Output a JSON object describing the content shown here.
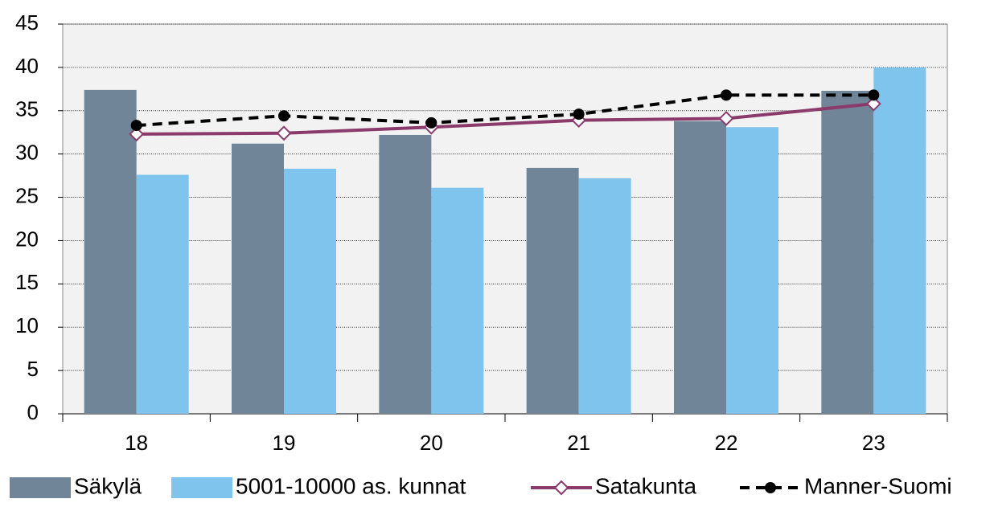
{
  "chart_data": {
    "type": "bar",
    "categories": [
      "18",
      "19",
      "20",
      "21",
      "22",
      "23"
    ],
    "series": [
      {
        "name": "Säkylä",
        "type": "bar",
        "color": "#718599",
        "values": [
          37.4,
          31.2,
          32.2,
          28.4,
          33.8,
          37.3
        ]
      },
      {
        "name": "5001-10000 as. kunnat",
        "type": "bar",
        "color": "#7fc4ec",
        "values": [
          27.6,
          28.3,
          26.1,
          27.2,
          33.1,
          40.0
        ]
      },
      {
        "name": "Satakunta",
        "type": "line",
        "color": "#8b3a6c",
        "marker": "diamond",
        "dashed": false,
        "values": [
          32.3,
          32.4,
          33.1,
          33.9,
          34.1,
          35.8
        ]
      },
      {
        "name": "Manner-Suomi",
        "type": "line",
        "color": "#000000",
        "marker": "circle",
        "dashed": true,
        "values": [
          33.3,
          34.4,
          33.6,
          34.6,
          36.8,
          36.8
        ]
      }
    ],
    "ylim": [
      0,
      45
    ],
    "yticks": [
      0,
      5,
      10,
      15,
      20,
      25,
      30,
      35,
      40,
      45
    ],
    "grid": true,
    "legend": "bottom"
  }
}
